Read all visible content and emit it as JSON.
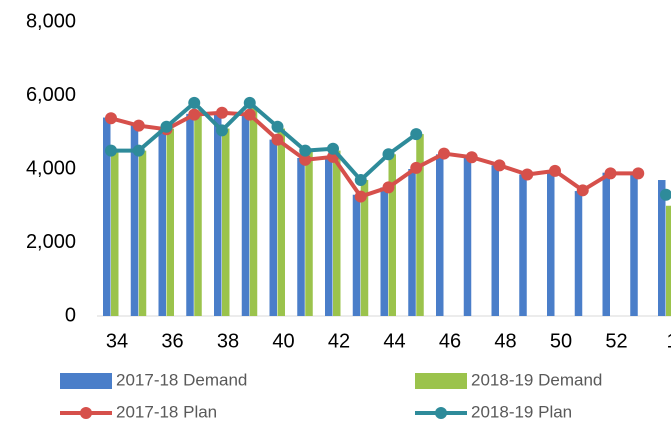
{
  "chart_data": {
    "type": "bar",
    "categories": [
      "34",
      null,
      "36",
      null,
      "38",
      null,
      "40",
      null,
      "42",
      null,
      "44",
      null,
      "46",
      null,
      "48",
      null,
      "50",
      null,
      "52",
      null,
      "1"
    ],
    "series": [
      {
        "name": "2017-18 Demand",
        "type": "bar",
        "color": "#4a7ec9",
        "values": [
          5400,
          5200,
          5100,
          5500,
          5500,
          5500,
          4800,
          4300,
          4300,
          3300,
          3500,
          4000,
          4400,
          4300,
          4100,
          3850,
          3950,
          3400,
          3900,
          3900,
          3700
        ]
      },
      {
        "name": "2018-19 Demand",
        "type": "bar",
        "color": "#9bc34c",
        "values": [
          4500,
          4500,
          5100,
          5600,
          5100,
          5700,
          5100,
          4500,
          4500,
          3700,
          4400,
          4950,
          null,
          null,
          null,
          null,
          null,
          null,
          null,
          null,
          3000
        ]
      },
      {
        "name": "2017-18 Plan",
        "type": "line",
        "color": "#d6504b",
        "values": [
          5380,
          5180,
          5080,
          5480,
          5530,
          5480,
          4800,
          4250,
          4330,
          3250,
          3500,
          4030,
          4420,
          4320,
          4100,
          3850,
          3950,
          3420,
          3880,
          3880,
          null
        ]
      },
      {
        "name": "2018-19 Plan",
        "type": "line",
        "color": "#2e8b9a",
        "values": [
          4500,
          4500,
          5150,
          5800,
          5050,
          5800,
          5150,
          4500,
          4550,
          3700,
          4400,
          4950,
          null,
          null,
          null,
          null,
          null,
          null,
          null,
          null,
          3300
        ]
      }
    ],
    "ylim": [
      0,
      8000
    ],
    "yticks": [
      0,
      {
        "value": 2000,
        "label": "2,000"
      },
      {
        "value": 4000,
        "label": "4,000"
      },
      {
        "value": 6000,
        "label": "6,000"
      },
      {
        "value": 8000,
        "label": "8,000"
      }
    ],
    "grid": false
  }
}
